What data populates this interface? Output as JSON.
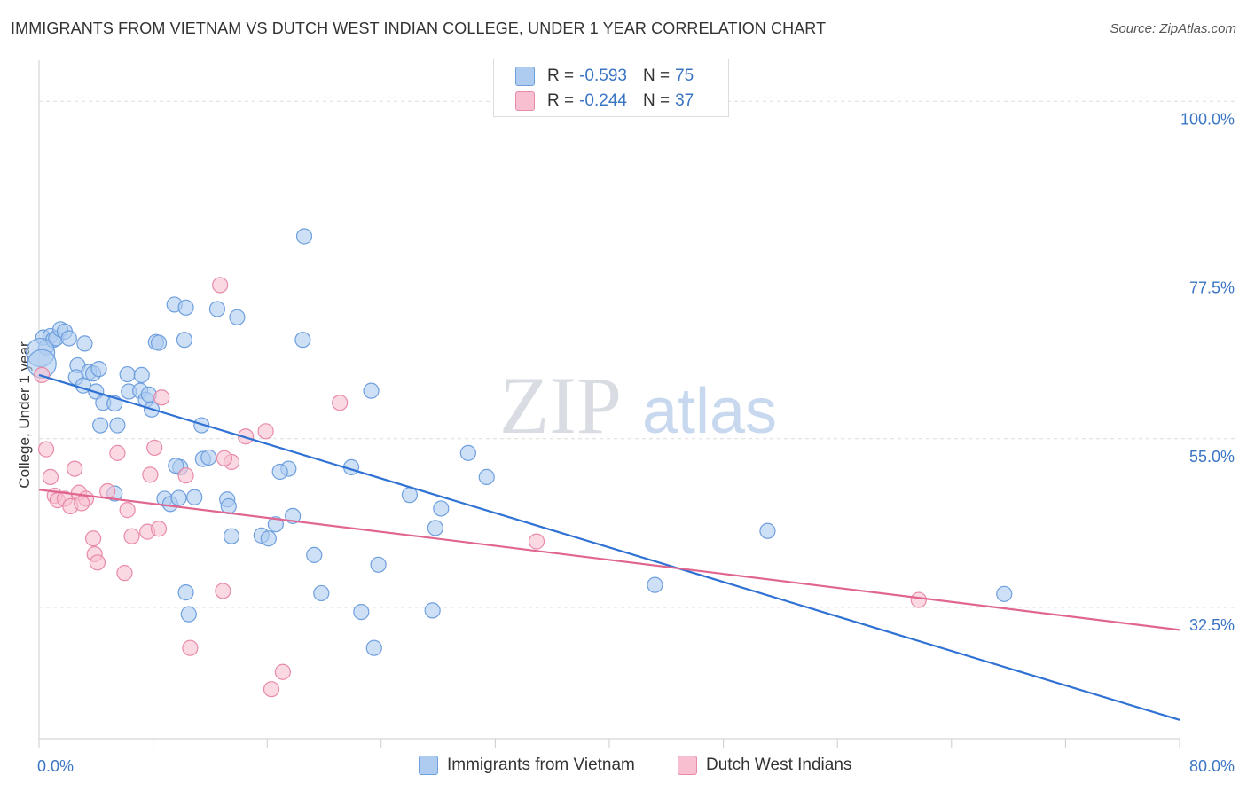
{
  "title": "IMMIGRANTS FROM VIETNAM VS DUTCH WEST INDIAN COLLEGE, UNDER 1 YEAR CORRELATION CHART",
  "source": "Source: ZipAtlas.com",
  "watermark": {
    "zip": "ZIP",
    "atlas": "atlas"
  },
  "legend": {
    "r_label": "R =",
    "n_label": "N =",
    "rows": [
      {
        "r": "-0.593",
        "n": "75",
        "fill": "#aecbf0",
        "stroke": "#6e9fde"
      },
      {
        "r": "-0.244",
        "n": "37",
        "fill": "#f8bfd0",
        "stroke": "#e88aa8"
      }
    ]
  },
  "bottom_legend": [
    "Immigrants from Vietnam",
    "Dutch West Indians"
  ],
  "chart_data": {
    "type": "scatter",
    "title": "IMMIGRANTS FROM VIETNAM VS DUTCH WEST INDIAN COLLEGE, UNDER 1 YEAR CORRELATION CHART",
    "xlabel": "",
    "ylabel": "College, Under 1 year",
    "xlim": [
      0,
      80
    ],
    "ylim": [
      15,
      105
    ],
    "x_tick_labels": [
      "0.0%",
      "80.0%"
    ],
    "y_ticks": [
      32.5,
      55.0,
      77.5,
      100.0
    ],
    "y_tick_labels": [
      "32.5%",
      "55.0%",
      "77.5%",
      "100.0%"
    ],
    "grid": true,
    "legend_position": "top-center",
    "series": [
      {
        "name": "Immigrants from Vietnam",
        "color": "#6e9fde",
        "fill": "#aecbf0",
        "line_color": "#2f72d3",
        "trend": {
          "x": [
            0,
            80
          ],
          "y": [
            63.5,
            17.5
          ]
        },
        "points": [
          [
            0.3,
            68.5
          ],
          [
            0.5,
            67.2
          ],
          [
            0.8,
            68.7
          ],
          [
            1.0,
            68.2
          ],
          [
            1.2,
            68.4
          ],
          [
            1.5,
            69.6
          ],
          [
            1.8,
            69.3
          ],
          [
            2.1,
            68.4
          ],
          [
            2.7,
            64.8
          ],
          [
            2.6,
            63.2
          ],
          [
            3.2,
            67.7
          ],
          [
            3.1,
            62.1
          ],
          [
            3.5,
            63.9
          ],
          [
            3.8,
            63.7
          ],
          [
            4.0,
            61.3
          ],
          [
            4.2,
            64.3
          ],
          [
            4.5,
            59.8
          ],
          [
            4.3,
            56.8
          ],
          [
            5.3,
            59.7
          ],
          [
            5.5,
            56.8
          ],
          [
            6.2,
            63.6
          ],
          [
            6.3,
            61.3
          ],
          [
            7.2,
            63.5
          ],
          [
            7.1,
            61.4
          ],
          [
            7.5,
            60.2
          ],
          [
            7.7,
            60.9
          ],
          [
            7.9,
            58.9
          ],
          [
            8.2,
            67.9
          ],
          [
            8.4,
            67.8
          ],
          [
            9.5,
            72.9
          ],
          [
            10.2,
            68.2
          ],
          [
            10.3,
            72.5
          ],
          [
            11.4,
            56.8
          ],
          [
            11.5,
            52.3
          ],
          [
            11.9,
            52.5
          ],
          [
            12.5,
            72.3
          ],
          [
            13.9,
            71.2
          ],
          [
            5.3,
            47.7
          ],
          [
            8.8,
            47.0
          ],
          [
            9.2,
            46.3
          ],
          [
            9.9,
            51.2
          ],
          [
            9.8,
            47.1
          ],
          [
            10.3,
            34.5
          ],
          [
            10.5,
            31.6
          ],
          [
            10.9,
            47.2
          ],
          [
            13.2,
            46.9
          ],
          [
            13.3,
            46.0
          ],
          [
            13.5,
            42.0
          ],
          [
            15.6,
            42.1
          ],
          [
            16.1,
            41.7
          ],
          [
            17.5,
            51.0
          ],
          [
            17.8,
            44.7
          ],
          [
            18.5,
            68.2
          ],
          [
            18.6,
            82.0
          ],
          [
            19.3,
            39.5
          ],
          [
            19.8,
            34.4
          ],
          [
            21.9,
            51.2
          ],
          [
            22.6,
            31.9
          ],
          [
            23.3,
            61.4
          ],
          [
            23.8,
            38.2
          ],
          [
            23.5,
            27.1
          ],
          [
            26.0,
            47.5
          ],
          [
            27.6,
            32.1
          ],
          [
            27.8,
            43.1
          ],
          [
            28.2,
            45.7
          ],
          [
            30.1,
            53.1
          ],
          [
            31.4,
            49.9
          ],
          [
            43.2,
            35.5
          ],
          [
            51.1,
            42.7
          ],
          [
            67.7,
            34.3
          ],
          [
            0.1,
            66.5
          ],
          [
            0.2,
            65.0
          ],
          [
            9.6,
            51.4
          ],
          [
            16.9,
            50.6
          ],
          [
            16.6,
            43.6
          ]
        ]
      },
      {
        "name": "Dutch West Indians",
        "color": "#e88aa8",
        "fill": "#f8bfd0",
        "line_color": "#e06690",
        "trend": {
          "x": [
            0,
            80
          ],
          "y": [
            48.2,
            29.5
          ]
        },
        "points": [
          [
            0.2,
            63.5
          ],
          [
            0.5,
            53.6
          ],
          [
            0.8,
            49.9
          ],
          [
            1.1,
            47.4
          ],
          [
            1.3,
            46.8
          ],
          [
            1.8,
            47.0
          ],
          [
            2.2,
            46.0
          ],
          [
            2.5,
            51.0
          ],
          [
            2.8,
            47.8
          ],
          [
            3.3,
            47.0
          ],
          [
            3.0,
            46.4
          ],
          [
            3.8,
            41.7
          ],
          [
            3.9,
            39.6
          ],
          [
            4.1,
            38.5
          ],
          [
            4.8,
            48.0
          ],
          [
            5.5,
            53.1
          ],
          [
            6.0,
            37.1
          ],
          [
            6.2,
            45.5
          ],
          [
            6.5,
            42.0
          ],
          [
            7.6,
            42.6
          ],
          [
            7.8,
            50.2
          ],
          [
            8.1,
            53.8
          ],
          [
            8.4,
            43.0
          ],
          [
            8.6,
            60.5
          ],
          [
            10.3,
            50.1
          ],
          [
            10.6,
            27.1
          ],
          [
            12.9,
            34.7
          ],
          [
            12.7,
            75.5
          ],
          [
            13.5,
            51.9
          ],
          [
            14.5,
            55.3
          ],
          [
            15.9,
            56.0
          ],
          [
            16.3,
            21.6
          ],
          [
            17.1,
            23.9
          ],
          [
            21.1,
            59.8
          ],
          [
            34.9,
            41.3
          ],
          [
            61.7,
            33.5
          ],
          [
            13.0,
            52.4
          ]
        ]
      }
    ]
  }
}
